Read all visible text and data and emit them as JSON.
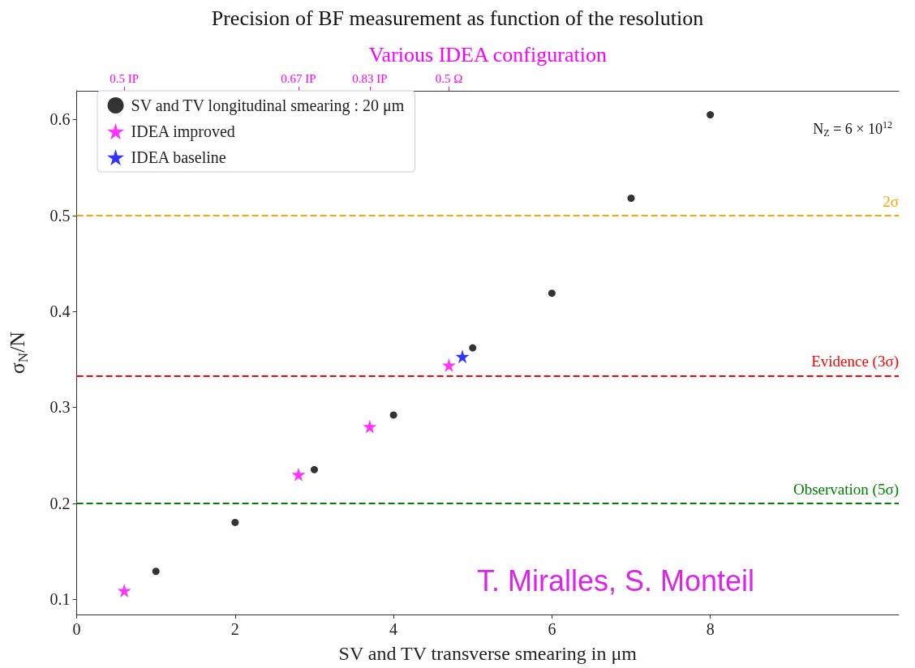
{
  "chart_data": {
    "type": "scatter",
    "title": "Precision of BF measurement as function of the resolution",
    "xlabel": "SV and TV transverse smearing in μm",
    "ylabel": "σ$_{N}$/N",
    "x2label": "Various IDEA configuration",
    "xlim": [
      0,
      10.38
    ],
    "xticks": [
      0,
      2,
      4,
      6,
      8
    ],
    "ylim": [
      0.084,
      0.63
    ],
    "yticks": [
      0.1,
      0.2,
      0.3,
      0.4,
      0.5,
      0.6
    ],
    "grid": false,
    "legend": "top left",
    "series": [
      {
        "name": "SV and TV longitudinal smearing : 20 μm",
        "color": "#000000",
        "marker": "circle",
        "x": [
          1,
          2,
          3,
          4,
          5,
          6,
          7,
          8
        ],
        "values": [
          0.129,
          0.18,
          0.235,
          0.292,
          0.362,
          0.419,
          0.518,
          0.605
        ]
      },
      {
        "name": "IDEA improved",
        "color": "#ff00ff",
        "marker": "star",
        "x": [
          0.6,
          2.8,
          3.7,
          4.7
        ],
        "values": [
          0.109,
          0.23,
          0.28,
          0.344
        ]
      },
      {
        "name": "IDEA baseline",
        "color": "#0000ff",
        "marker": "star",
        "x": [
          4.87
        ],
        "values": [
          0.353
        ]
      }
    ],
    "ref_lines": [
      {
        "axis": "y",
        "value": 0.5,
        "label": "2σ",
        "color": "#ffa500",
        "line_style": "dashed"
      },
      {
        "axis": "y",
        "value": 0.333,
        "label": "Evidence (3σ)",
        "color": "#ff0000",
        "line_style": "dashed"
      },
      {
        "axis": "y",
        "value": 0.2,
        "label": "Observation (5σ)",
        "color": "#008000",
        "line_style": "dashed"
      }
    ],
    "annotations": [
      "N$_{Z}$ = 6 × 10$^{12}$",
      "T. Miralles, S. Monteil",
      "0.5 IP",
      "0.67 IP",
      "0.83 IP",
      "0.5 Ω"
    ]
  }
}
